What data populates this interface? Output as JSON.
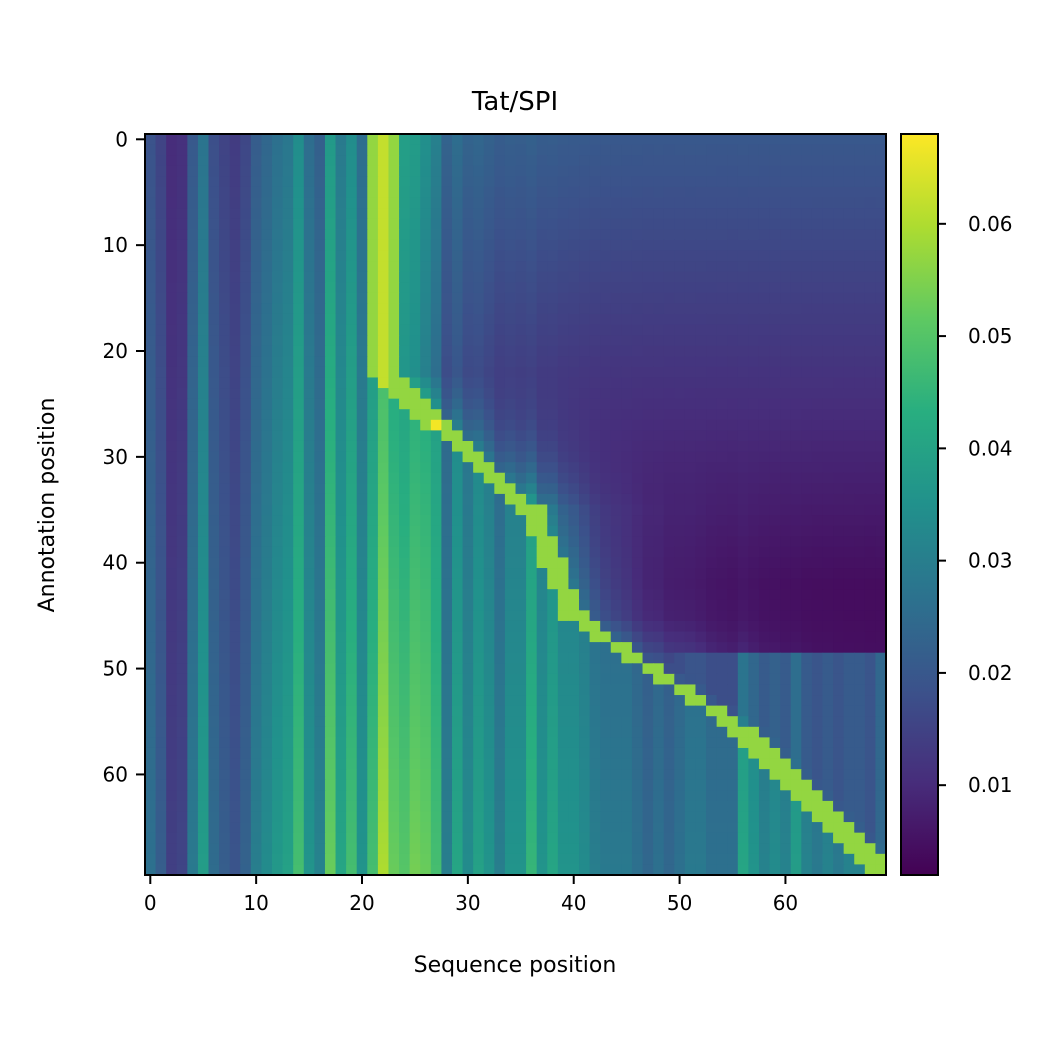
{
  "chart_data": {
    "type": "heatmap",
    "title": "Tat/SPI",
    "xlabel": "Sequence position",
    "ylabel": "Annotation position",
    "x_ticks": [
      0,
      10,
      20,
      30,
      40,
      50,
      60
    ],
    "y_ticks": [
      0,
      10,
      20,
      30,
      40,
      50,
      60
    ],
    "n_cols": 70,
    "n_rows": 70,
    "xlim": [
      -0.5,
      69.5
    ],
    "ylim": [
      69.5,
      -0.5
    ],
    "colormap": "viridis",
    "colorbar": {
      "range": [
        0.002,
        0.068
      ],
      "ticks": [
        0.01,
        0.02,
        0.03,
        0.04,
        0.05,
        0.06
      ],
      "tick_labels": [
        "0.01",
        "0.02",
        "0.03",
        "0.04",
        "0.05",
        "0.06"
      ]
    },
    "value_structure": {
      "column_profile": [
        0.022,
        0.018,
        0.012,
        0.013,
        0.024,
        0.032,
        0.021,
        0.018,
        0.016,
        0.019,
        0.025,
        0.028,
        0.031,
        0.033,
        0.04,
        0.03,
        0.026,
        0.044,
        0.034,
        0.04,
        0.03,
        0.04,
        0.05,
        0.044,
        0.042,
        0.045,
        0.044,
        0.04,
        0.025,
        0.034,
        0.028,
        0.033,
        0.03,
        0.025,
        0.03,
        0.03,
        0.038,
        0.03,
        0.034,
        0.03,
        0.03,
        0.028,
        0.025,
        0.024,
        0.024,
        0.024,
        0.022,
        0.02,
        0.022,
        0.02,
        0.022,
        0.024,
        0.024,
        0.022,
        0.022,
        0.022,
        0.034,
        0.03,
        0.026,
        0.028,
        0.026,
        0.032,
        0.026,
        0.024,
        0.026,
        0.024,
        0.026,
        0.026,
        0.024,
        0.03
      ],
      "diagonal_path": [
        [
          0,
          22
        ],
        [
          22,
          22
        ],
        [
          27,
          27
        ],
        [
          35,
          36
        ],
        [
          45,
          40
        ],
        [
          56,
          56
        ],
        [
          69,
          69
        ]
      ],
      "background_top": 0.02,
      "background_bottom_right": 0.004,
      "ridge_peak": 0.067,
      "peak_cell": [
        27,
        27
      ]
    }
  }
}
